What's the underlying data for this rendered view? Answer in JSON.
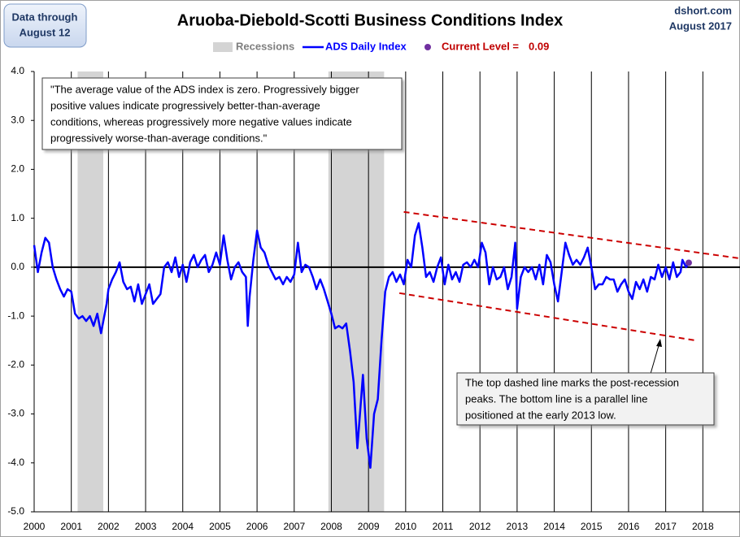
{
  "chart_data": {
    "type": "line",
    "title": "Aruoba-Diebold-Scotti Business Conditions Index",
    "note_left": [
      "Data through",
      "August 12"
    ],
    "source": [
      "dshort.com",
      "August 2017"
    ],
    "quote": [
      "\"The average value of the ADS index is zero. Progressively bigger",
      "positive values indicate progressively better-than-average",
      "conditions, whereas progressively more negative values indicate",
      "progressively worse-than-average conditions.\""
    ],
    "callout": [
      "The top dashed line marks the post-recession",
      "peaks. The bottom  line is a parallel line",
      "positioned at the early 2013 low."
    ],
    "xlim": [
      2000,
      2019
    ],
    "xticks": [
      2000,
      2001,
      2002,
      2003,
      2004,
      2005,
      2006,
      2007,
      2008,
      2009,
      2010,
      2011,
      2012,
      2013,
      2014,
      2015,
      2016,
      2017,
      2018
    ],
    "ylim": [
      -5,
      4
    ],
    "yticks": [
      {
        "value": 4,
        "label": "4.0"
      },
      {
        "value": 3,
        "label": "3.0"
      },
      {
        "value": 2,
        "label": "2.0"
      },
      {
        "value": 1,
        "label": "1.0"
      },
      {
        "value": 0,
        "label": "0.0"
      },
      {
        "value": -1,
        "label": "-1.0"
      },
      {
        "value": -2,
        "label": "-2.0"
      },
      {
        "value": -3,
        "label": "-3.0"
      },
      {
        "value": -4,
        "label": "-4.0"
      },
      {
        "value": -5,
        "label": "-5.0"
      }
    ],
    "grid": "x",
    "recessions": {
      "name": "Recessions",
      "color": "#d4d4d4",
      "spans": [
        [
          2001.17,
          2001.86
        ],
        [
          2007.92,
          2009.42
        ]
      ]
    },
    "series": [
      {
        "name": "ADS Daily Index",
        "color": "#0000ff",
        "x": [
          2000.0,
          2000.1,
          2000.2,
          2000.3,
          2000.4,
          2000.5,
          2000.6,
          2000.7,
          2000.8,
          2000.9,
          2001.0,
          2001.1,
          2001.2,
          2001.3,
          2001.4,
          2001.5,
          2001.6,
          2001.7,
          2001.8,
          2001.9,
          2001.95,
          2002.0,
          2002.1,
          2002.2,
          2002.3,
          2002.4,
          2002.5,
          2002.6,
          2002.7,
          2002.8,
          2002.9,
          2003.0,
          2003.1,
          2003.2,
          2003.3,
          2003.4,
          2003.5,
          2003.6,
          2003.7,
          2003.8,
          2003.9,
          2004.0,
          2004.1,
          2004.2,
          2004.3,
          2004.4,
          2004.5,
          2004.6,
          2004.7,
          2004.8,
          2004.9,
          2005.0,
          2005.1,
          2005.2,
          2005.3,
          2005.4,
          2005.5,
          2005.6,
          2005.7,
          2005.75,
          2005.8,
          2005.9,
          2006.0,
          2006.1,
          2006.2,
          2006.3,
          2006.4,
          2006.5,
          2006.6,
          2006.7,
          2006.8,
          2006.9,
          2007.0,
          2007.1,
          2007.2,
          2007.3,
          2007.4,
          2007.5,
          2007.6,
          2007.7,
          2007.8,
          2007.9,
          2008.0,
          2008.1,
          2008.2,
          2008.3,
          2008.4,
          2008.5,
          2008.6,
          2008.7,
          2008.75,
          2008.85,
          2008.95,
          2009.05,
          2009.15,
          2009.25,
          2009.35,
          2009.45,
          2009.55,
          2009.65,
          2009.75,
          2009.85,
          2009.95,
          2010.05,
          2010.15,
          2010.25,
          2010.35,
          2010.45,
          2010.55,
          2010.65,
          2010.75,
          2010.85,
          2010.95,
          2011.05,
          2011.15,
          2011.25,
          2011.35,
          2011.45,
          2011.55,
          2011.65,
          2011.75,
          2011.85,
          2011.95,
          2012.05,
          2012.15,
          2012.25,
          2012.35,
          2012.45,
          2012.55,
          2012.65,
          2012.75,
          2012.85,
          2012.95,
          2013.0,
          2013.1,
          2013.2,
          2013.3,
          2013.4,
          2013.5,
          2013.6,
          2013.7,
          2013.8,
          2013.9,
          2014.0,
          2014.1,
          2014.2,
          2014.3,
          2014.4,
          2014.5,
          2014.6,
          2014.7,
          2014.8,
          2014.9,
          2015.0,
          2015.1,
          2015.2,
          2015.3,
          2015.4,
          2015.5,
          2015.6,
          2015.7,
          2015.8,
          2015.9,
          2016.0,
          2016.1,
          2016.2,
          2016.3,
          2016.4,
          2016.5,
          2016.6,
          2016.7,
          2016.8,
          2016.9,
          2017.0,
          2017.1,
          2017.2,
          2017.3,
          2017.4,
          2017.45,
          2017.55,
          2017.62
        ],
        "values": [
          0.45,
          -0.1,
          0.3,
          0.6,
          0.5,
          0,
          -0.25,
          -0.45,
          -0.6,
          -0.45,
          -0.5,
          -0.95,
          -1.05,
          -1.0,
          -1.1,
          -1.0,
          -1.2,
          -0.95,
          -1.35,
          -0.95,
          -0.75,
          -0.45,
          -0.25,
          -0.1,
          0.1,
          -0.3,
          -0.45,
          -0.4,
          -0.7,
          -0.35,
          -0.75,
          -0.55,
          -0.35,
          -0.75,
          -0.65,
          -0.55,
          0,
          0.1,
          -0.1,
          0.2,
          -0.2,
          0.05,
          -0.3,
          0.1,
          0.25,
          0,
          0.15,
          0.25,
          -0.1,
          0.05,
          0.3,
          0.05,
          0.65,
          0.15,
          -0.25,
          0,
          0.1,
          -0.1,
          -0.2,
          -1.2,
          -0.6,
          0.15,
          0.75,
          0.4,
          0.3,
          0.05,
          -0.1,
          -0.25,
          -0.2,
          -0.35,
          -0.2,
          -0.3,
          -0.15,
          0.5,
          -0.1,
          0.05,
          0,
          -0.2,
          -0.45,
          -0.25,
          -0.45,
          -0.7,
          -0.95,
          -1.25,
          -1.2,
          -1.25,
          -1.15,
          -1.7,
          -2.35,
          -3.7,
          -3.2,
          -2.2,
          -3.5,
          -4.1,
          -3.0,
          -2.7,
          -1.5,
          -0.5,
          -0.2,
          -0.1,
          -0.3,
          -0.15,
          -0.35,
          0.15,
          0,
          0.65,
          0.9,
          0.4,
          -0.2,
          -0.1,
          -0.3,
          0,
          0.2,
          -0.35,
          0.05,
          -0.25,
          -0.1,
          -0.3,
          0.05,
          0.1,
          0,
          0.15,
          0,
          0.5,
          0.3,
          -0.35,
          0,
          -0.25,
          -0.2,
          0,
          -0.45,
          -0.2,
          0.5,
          -0.85,
          -0.2,
          0,
          -0.1,
          0,
          -0.25,
          0.05,
          -0.35,
          0.25,
          0.1,
          -0.35,
          -0.7,
          -0.1,
          0.5,
          0.25,
          0.05,
          0.15,
          0.05,
          0.2,
          0.4,
          0,
          -0.45,
          -0.35,
          -0.35,
          -0.2,
          -0.25,
          -0.25,
          -0.5,
          -0.35,
          -0.25,
          -0.5,
          -0.65,
          -0.3,
          -0.45,
          -0.25,
          -0.5,
          -0.2,
          -0.25,
          0.05,
          -0.2,
          0,
          -0.25,
          0.1,
          -0.2,
          -0.1,
          0.15,
          0,
          0.09
        ]
      }
    ],
    "current_level": {
      "name": "Current Level =",
      "x": 2017.62,
      "value": 0.09,
      "color": "#7030a0",
      "label_color": "#c00000"
    },
    "trend_lines": {
      "color": "#cc0000",
      "lines": [
        {
          "x": [
            2009.95,
            2019
          ],
          "values": [
            1.13,
            0.18
          ]
        },
        {
          "x": [
            2009.83,
            2017.83
          ],
          "values": [
            -0.53,
            -1.5
          ]
        }
      ]
    }
  }
}
